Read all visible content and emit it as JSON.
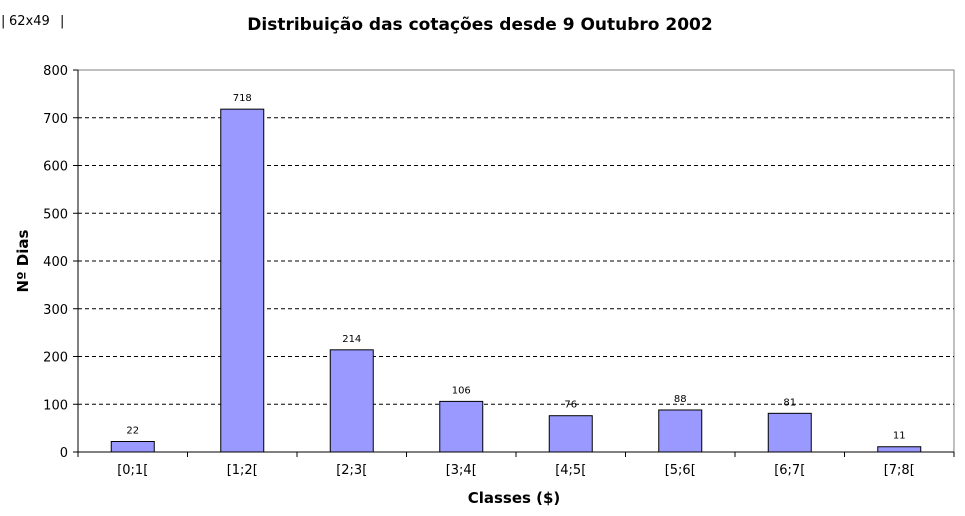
{
  "corner_label": "62x49",
  "chart_data": {
    "type": "bar",
    "title": "Distribuição das cotações desde 9 Outubro 2002",
    "xlabel": "Classes ($)",
    "ylabel": "Nº Dias",
    "categories": [
      "[0;1[",
      "[1;2[",
      "[2;3[",
      "[3;4[",
      "[4;5[",
      "[5;6[",
      "[6;7[",
      "[7;8["
    ],
    "values": [
      22,
      718,
      214,
      106,
      76,
      88,
      81,
      11
    ],
    "data_labels": [
      "22",
      "718",
      "214",
      "106",
      "76",
      "88",
      "81",
      "11"
    ],
    "ylim": [
      0,
      800
    ],
    "yticks": [
      0,
      100,
      200,
      300,
      400,
      500,
      600,
      700,
      800
    ],
    "grid": "horizontal dashed",
    "legend": "none",
    "bar_color": "#9999ff"
  }
}
